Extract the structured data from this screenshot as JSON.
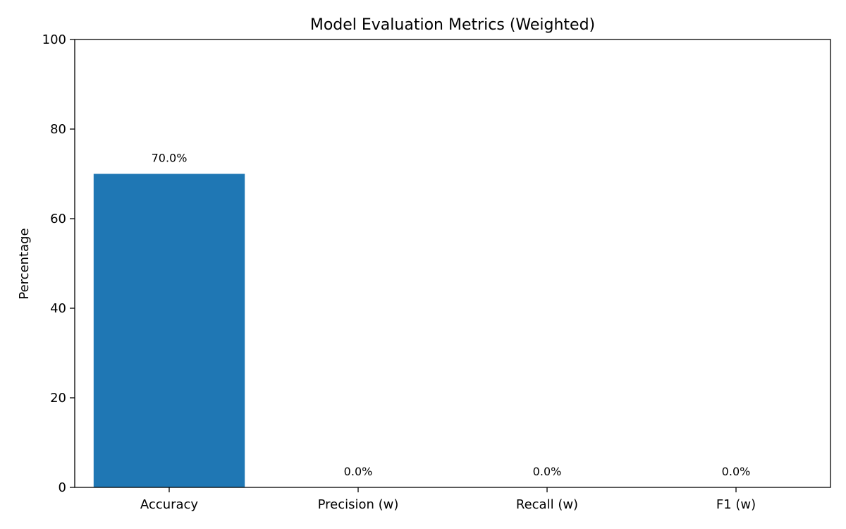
{
  "chart_data": {
    "type": "bar",
    "title": "Model Evaluation Metrics (Weighted)",
    "xlabel": "",
    "ylabel": "Percentage",
    "categories": [
      "Accuracy",
      "Precision (w)",
      "Recall (w)",
      "F1 (w)"
    ],
    "values": [
      70.0,
      0.0,
      0.0,
      0.0
    ],
    "data_labels": [
      "70.0%",
      "0.0%",
      "0.0%",
      "0.0%"
    ],
    "ylim": [
      0,
      100
    ],
    "yticks": [
      0,
      20,
      40,
      60,
      80,
      100
    ],
    "ytick_labels": [
      "0",
      "20",
      "40",
      "60",
      "80",
      "100"
    ],
    "grid": false,
    "legend": "none",
    "bar_color": "#1f77b4"
  }
}
